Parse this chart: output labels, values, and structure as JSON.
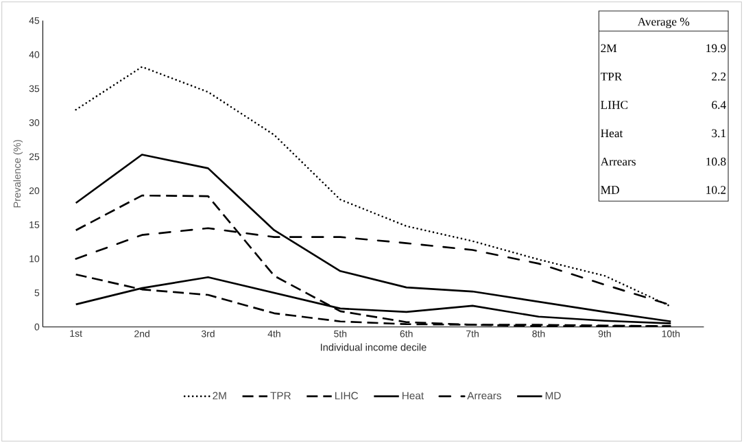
{
  "chart_data": {
    "type": "line",
    "xlabel": "Individual income decile",
    "ylabel": "Prevalence (%)",
    "categories": [
      "1st",
      "2nd",
      "3rd",
      "4th",
      "5th",
      "6th",
      "7th",
      "8th",
      "9th",
      "10th"
    ],
    "series": [
      {
        "name": "2M",
        "color": "#000000",
        "line_style": "dotted",
        "values": [
          31.9,
          38.2,
          34.5,
          28.2,
          18.7,
          14.8,
          12.6,
          9.9,
          7.5,
          3.0
        ]
      },
      {
        "name": "TPR",
        "color": "#000000",
        "line_style": "dashed",
        "values": [
          7.7,
          5.5,
          4.7,
          2.0,
          0.8,
          0.4,
          0.3,
          0.3,
          0.2,
          0.1
        ]
      },
      {
        "name": "LIHC",
        "color": "#000000",
        "line_style": "dashed",
        "values": [
          14.2,
          19.3,
          19.2,
          7.5,
          2.3,
          0.7,
          0.3,
          0.1,
          0.1,
          0.1
        ]
      },
      {
        "name": "Heat",
        "color": "#000000",
        "line_style": "solid",
        "values": [
          3.3,
          5.7,
          7.3,
          5.0,
          2.7,
          2.2,
          3.1,
          1.5,
          0.9,
          0.5
        ]
      },
      {
        "name": "Arrears",
        "color": "#000000",
        "line_style": "dashdot",
        "values": [
          10.0,
          13.5,
          14.5,
          13.2,
          13.2,
          12.3,
          11.3,
          9.3,
          6.2,
          3.2
        ]
      },
      {
        "name": "MD",
        "color": "#000000",
        "line_style": "solid",
        "values": [
          18.2,
          25.3,
          23.3,
          14.2,
          8.2,
          5.8,
          5.2,
          3.7,
          2.2,
          0.8
        ]
      }
    ],
    "ylim": [
      0,
      45
    ],
    "yticks": [
      0,
      5,
      10,
      15,
      20,
      25,
      30,
      35,
      40,
      45
    ],
    "grid": false,
    "legend": "bottom",
    "marker": "none",
    "annotations": [
      "Average %",
      "2M",
      "19.9",
      "TPR",
      "2.2",
      "LIHC",
      "6.4",
      "Heat",
      "3.1",
      "Arrears",
      "10.8",
      "MD",
      "10.2"
    ]
  }
}
